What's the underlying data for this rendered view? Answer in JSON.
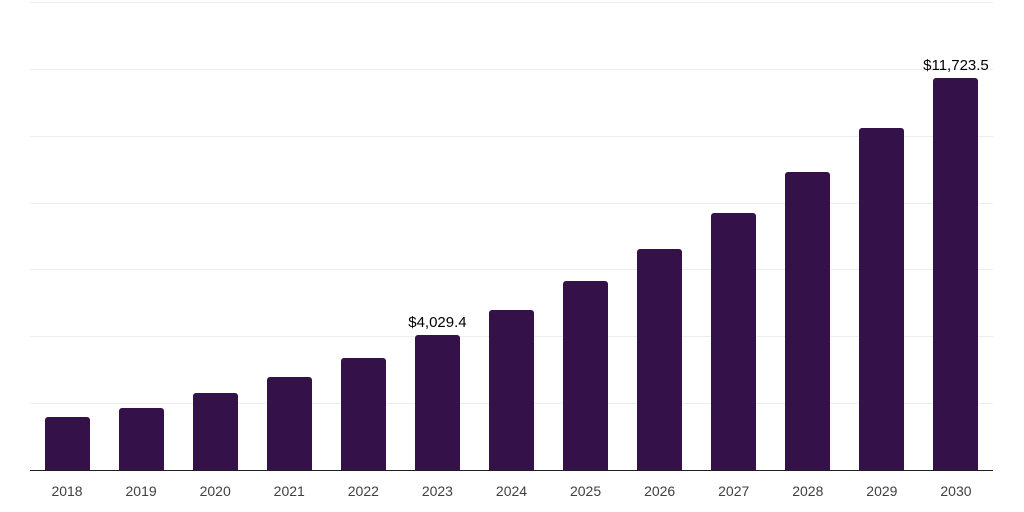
{
  "chart_data": {
    "type": "bar",
    "title": "",
    "xlabel": "",
    "ylabel": "",
    "categories": [
      "2018",
      "2019",
      "2020",
      "2021",
      "2022",
      "2023",
      "2024",
      "2025",
      "2026",
      "2027",
      "2028",
      "2029",
      "2030"
    ],
    "values": [
      1584,
      1853,
      2301,
      2779,
      3347,
      4029.4,
      4781,
      5647,
      6603,
      7679,
      8904,
      10240,
      11723.5
    ],
    "labeled_points": [
      {
        "category": "2023",
        "label": "$4,029.4"
      },
      {
        "category": "2030",
        "label": "$11,723.5"
      }
    ],
    "ylim": [
      0,
      14000
    ],
    "gridline_step": 2000,
    "grid": true,
    "legend": "none",
    "y_axis_tick_labels_visible": false,
    "colors": {
      "bar": "#351149",
      "gridline": "#ededed",
      "axis_line": "#1f1f1f",
      "tick_label": "#404040",
      "data_label": "#000000",
      "background": "#ffffff"
    }
  }
}
